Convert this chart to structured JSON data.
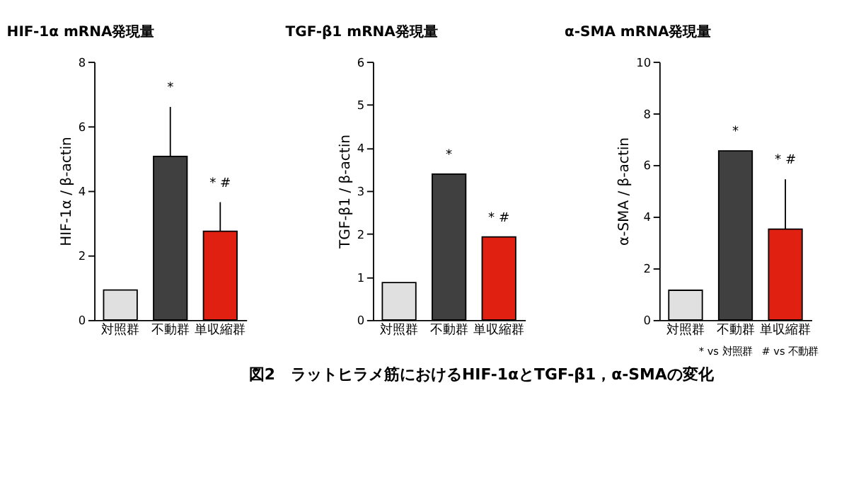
{
  "chart_data": [
    {
      "type": "bar",
      "title": "HIF-1α mRNA発現量",
      "ylabel": "HIF-1α / β-actin",
      "categories": [
        "対照群",
        "不動群",
        "単収縮群"
      ],
      "values": [
        0.93,
        5.07,
        2.75
      ],
      "colors": [
        "#e0e0e0",
        "#404040",
        "#e02010"
      ],
      "errors": [
        null,
        [
          5.07,
          6.6
        ],
        [
          2.75,
          3.65
        ]
      ],
      "ylim": [
        0,
        8
      ],
      "yticks": [
        0,
        2,
        4,
        6,
        8
      ],
      "grid": false,
      "legend": false,
      "annotations": [
        "*",
        "*  #"
      ]
    },
    {
      "type": "bar",
      "title": "TGF-β1 mRNA発現量",
      "ylabel": "TGF-β1 / β-actin",
      "categories": [
        "対照群",
        "不動群",
        "単収縮群"
      ],
      "values": [
        0.87,
        3.39,
        1.93
      ],
      "colors": [
        "#e0e0e0",
        "#404040",
        "#e02010"
      ],
      "ylim": [
        0,
        6
      ],
      "yticks": [
        0,
        1,
        2,
        3,
        4,
        5,
        6
      ],
      "grid": false,
      "legend": false,
      "annotations": [
        "*",
        "*  #"
      ]
    },
    {
      "type": "bar",
      "title": "α-SMA mRNA発現量",
      "ylabel": "α-SMA / β-actin",
      "categories": [
        "対照群",
        "不動群",
        "単収縮群"
      ],
      "values": [
        1.15,
        6.55,
        3.52
      ],
      "colors": [
        "#e0e0e0",
        "#404040",
        "#e02010"
      ],
      "errors": [
        null,
        null,
        [
          3.52,
          5.45
        ]
      ],
      "ylim": [
        0,
        10
      ],
      "yticks": [
        0,
        2,
        4,
        6,
        8,
        10
      ],
      "grid": false,
      "legend": false,
      "annotations": [
        "*",
        "*  #",
        "* vs 対照群　# vs 不動群"
      ]
    },
    {
      "type": "other",
      "title": "図2　ラットヒラメ筋におけるHIF-1αとTGF-β1，α-SMAの変化"
    }
  ]
}
